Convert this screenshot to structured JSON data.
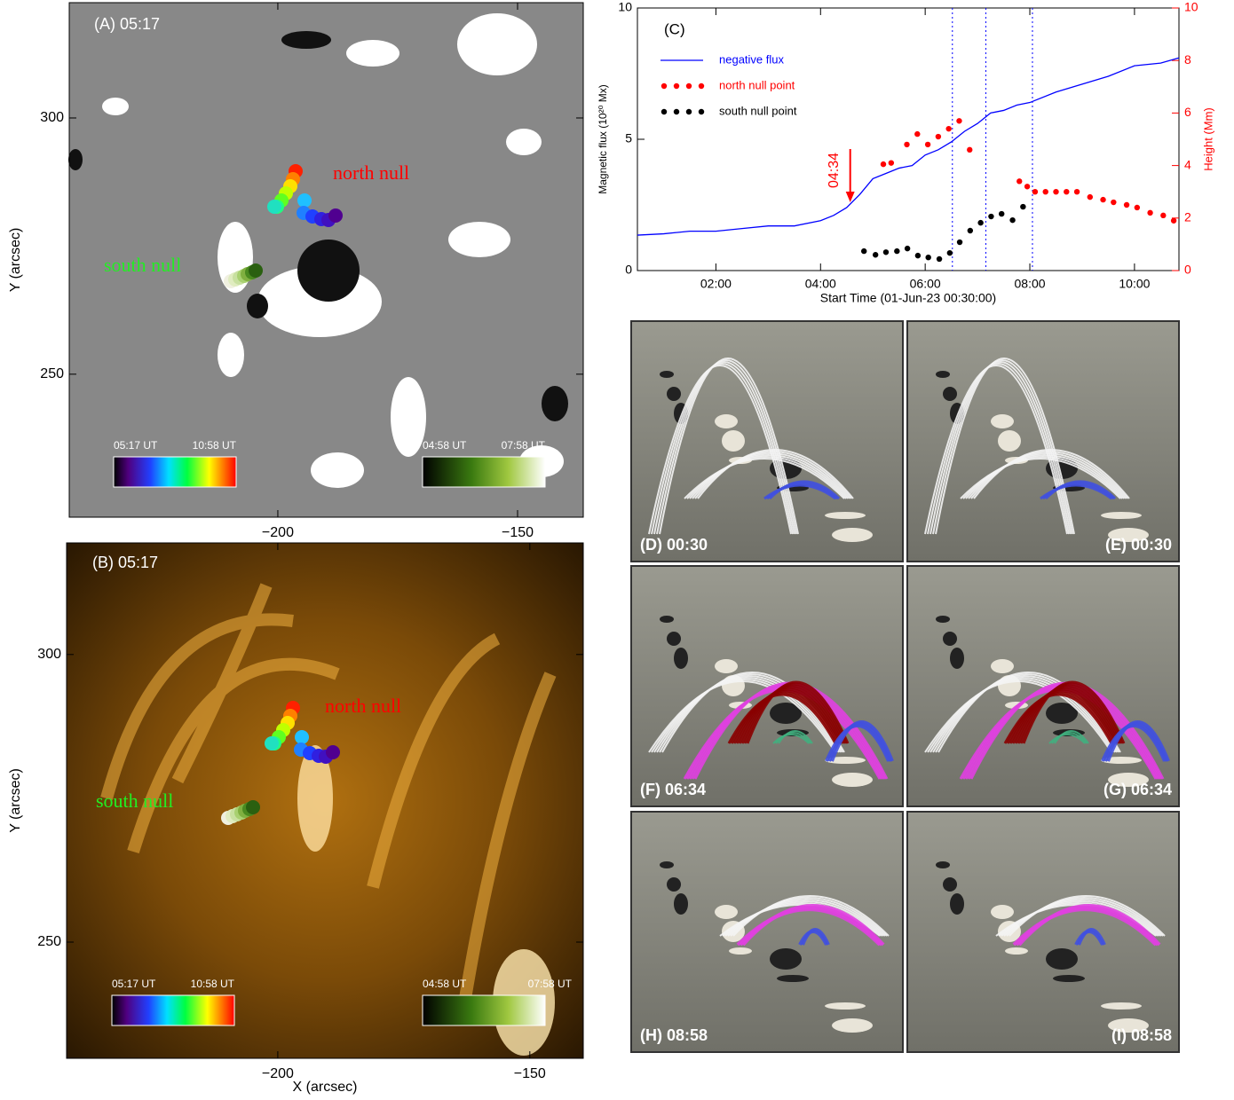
{
  "panels": {
    "A": {
      "label": "(A) 05:17",
      "xlim": [
        -243.5,
        -136.3
      ],
      "ylim": [
        222.1,
        322.5
      ],
      "xticks": [
        {
          "value": -200,
          "label": "−200"
        },
        {
          "value": -150,
          "label": "−150"
        }
      ],
      "yticks": [
        250,
        300
      ],
      "ylabel": "Y (arcsec)",
      "north_null": "north null",
      "south_null": "south null",
      "colorbar_rainbow": [
        "05:17 UT",
        "10:58 UT"
      ],
      "colorbar_green": [
        "04:58 UT",
        "07:58 UT"
      ]
    },
    "B": {
      "label": "(B) 05:17",
      "xlim": [
        -241.9,
        -139.4
      ],
      "ylim": [
        229.8,
        319.4
      ],
      "xticks": [
        {
          "value": -200,
          "label": "−200"
        },
        {
          "value": -150,
          "label": "−150"
        }
      ],
      "yticks": [
        250,
        300
      ],
      "ylabel": "Y (arcsec)",
      "xlabel": "X (arcsec)",
      "north_null": "north null",
      "south_null": "south null",
      "colorbar_rainbow": [
        "05:17 UT",
        "10:58 UT"
      ],
      "colorbar_green": [
        "04:58 UT",
        "07:58 UT"
      ]
    },
    "D": {
      "label": "(D) 00:30"
    },
    "E": {
      "label": "(E) 00:30"
    },
    "F": {
      "label": "(F) 06:34"
    },
    "G": {
      "label": "(G) 06:34"
    },
    "H": {
      "label": "(H) 08:58"
    },
    "I": {
      "label": "(I) 08:58"
    }
  },
  "chart_data": {
    "type": "line",
    "panel_label": "(C)",
    "xlabel": "Start Time (01-Jun-23 00:30:00)",
    "ylabel": "Magnetic flux (10²⁰ Mx)",
    "y2label": "Height (Mm)",
    "xlim": [
      0.5,
      10.85
    ],
    "xticks": [
      {
        "value": 2,
        "label": "02:00"
      },
      {
        "value": 4,
        "label": "04:00"
      },
      {
        "value": 6,
        "label": "06:00"
      },
      {
        "value": 8,
        "label": "08:00"
      },
      {
        "value": 10,
        "label": "10:00"
      }
    ],
    "ylim": [
      0,
      10
    ],
    "yticks": [
      0,
      5,
      10
    ],
    "y2lim": [
      0,
      10
    ],
    "y2ticks": [
      0,
      2,
      4,
      6,
      8,
      10
    ],
    "y2color": "#ff0000",
    "series": [
      {
        "name": "negative flux",
        "color": "#0000ff",
        "style": "line",
        "x": [
          0.5,
          1,
          1.5,
          2,
          2.5,
          3,
          3.5,
          4,
          4.25,
          4.5,
          4.75,
          5,
          5.25,
          5.5,
          5.75,
          6,
          6.25,
          6.5,
          6.75,
          7,
          7.25,
          7.5,
          7.75,
          8,
          8.5,
          9,
          9.5,
          10,
          10.5,
          10.85
        ],
        "values": [
          1.35,
          1.4,
          1.5,
          1.5,
          1.6,
          1.7,
          1.7,
          1.9,
          2.1,
          2.4,
          2.9,
          3.5,
          3.7,
          3.9,
          4.0,
          4.4,
          4.6,
          4.9,
          5.3,
          5.6,
          6.0,
          6.1,
          6.3,
          6.4,
          6.8,
          7.1,
          7.4,
          7.8,
          7.9,
          8.1
        ]
      },
      {
        "name": "north null point",
        "color": "#ff0000",
        "style": "dots",
        "axis": "y2",
        "x": [
          5.2,
          5.35,
          5.65,
          5.85,
          6.05,
          6.25,
          6.45,
          6.65,
          6.85,
          7.8,
          7.95,
          8.1,
          8.3,
          8.5,
          8.7,
          8.9,
          9.15,
          9.4,
          9.6,
          9.85,
          10.05,
          10.3,
          10.55,
          10.75
        ],
        "values": [
          4.05,
          4.1,
          4.8,
          5.2,
          4.8,
          5.1,
          5.4,
          5.7,
          4.6,
          3.4,
          3.2,
          3.0,
          3.0,
          3.0,
          3.0,
          3.0,
          2.8,
          2.7,
          2.6,
          2.5,
          2.4,
          2.2,
          2.1,
          1.9
        ]
      },
      {
        "name": "south null point",
        "color": "#000000",
        "style": "dots",
        "axis": "y2",
        "x": [
          4.83,
          5.05,
          5.25,
          5.46,
          5.66,
          5.86,
          6.06,
          6.27,
          6.47,
          6.66,
          6.86,
          7.06,
          7.26,
          7.46,
          7.67,
          7.87
        ],
        "values": [
          0.74,
          0.6,
          0.7,
          0.74,
          0.84,
          0.57,
          0.5,
          0.44,
          0.67,
          1.08,
          1.52,
          1.82,
          2.06,
          2.16,
          1.92,
          2.43
        ]
      }
    ],
    "vlines": [
      6.52,
      7.16,
      8.05
    ],
    "vline_color": "#0000ff",
    "annotation": {
      "text": "04:34",
      "x": 4.567,
      "color": "#ff0000"
    }
  }
}
